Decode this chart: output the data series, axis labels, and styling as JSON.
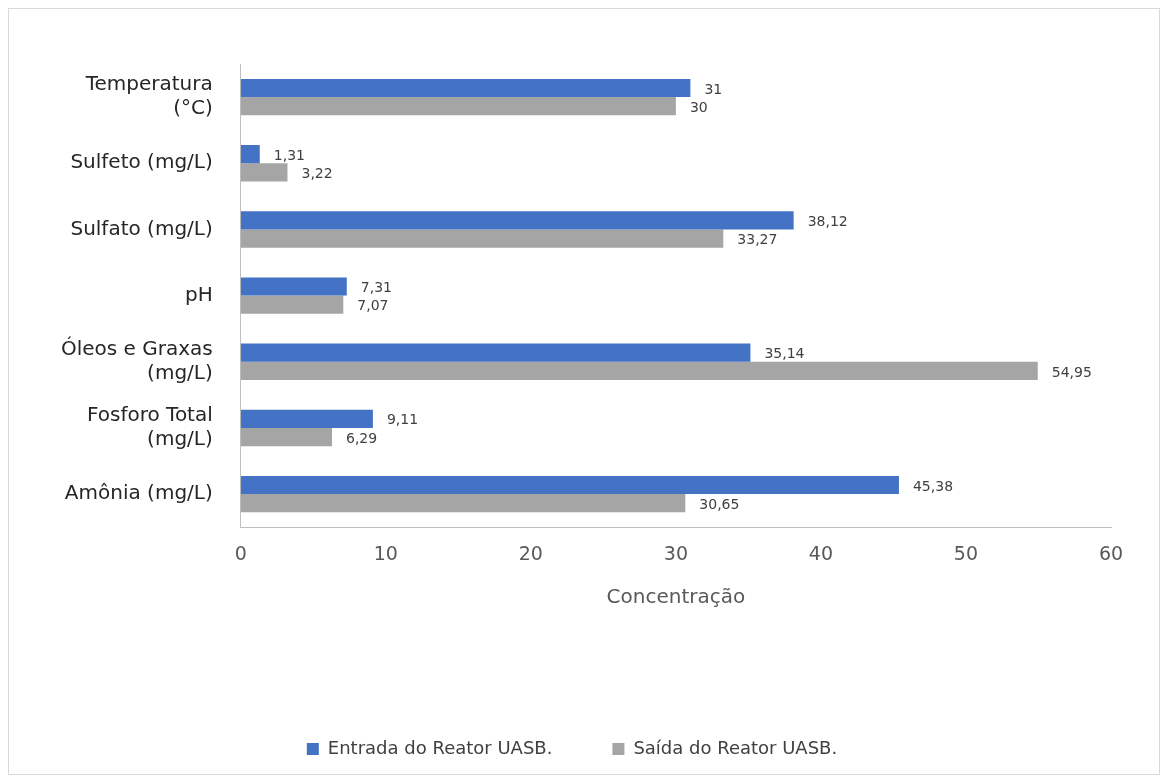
{
  "chart_data": {
    "type": "bar",
    "orientation": "horizontal",
    "categories": [
      "Temperatura (°C)",
      "Sulfeto (mg/L)",
      "Sulfato (mg/L)",
      "pH",
      "Óleos e Graxas (mg/L)",
      "Fosforo Total (mg/L)",
      "Amônia (mg/L)"
    ],
    "series": [
      {
        "name": "Entrada do Reator UASB.",
        "color": "#4472c4",
        "values": [
          31,
          1.31,
          38.12,
          7.31,
          35.14,
          9.11,
          45.38
        ],
        "value_labels": [
          "31",
          "1,31",
          "38,12",
          "7,31",
          "35,14",
          "9,11",
          "45,38"
        ]
      },
      {
        "name": "Saída do Reator UASB.",
        "color": "#a5a5a5",
        "values": [
          30,
          3.22,
          33.27,
          7.07,
          54.95,
          6.29,
          30.65
        ],
        "value_labels": [
          "30",
          "3,22",
          "33,27",
          "7,07",
          "54,95",
          "6,29",
          "30,65"
        ]
      }
    ],
    "xlabel": "Concentração",
    "xlim": [
      0,
      60
    ],
    "xticks": [
      0,
      10,
      20,
      30,
      40,
      50,
      60
    ],
    "grid": false,
    "legend": "bottom"
  }
}
